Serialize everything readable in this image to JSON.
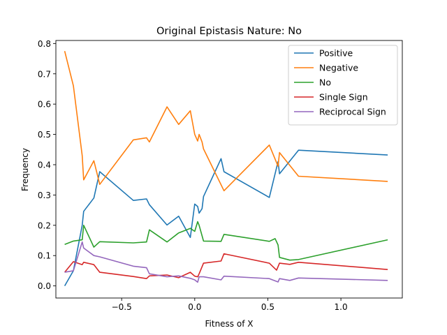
{
  "chart_data": {
    "type": "line",
    "title": "Original Epistasis Nature: No",
    "xlabel": "Fitness of X",
    "ylabel": "Frequency",
    "xlim": [
      -0.95,
      1.42
    ],
    "ylim": [
      -0.04,
      0.81
    ],
    "xticks": [
      -0.5,
      0.0,
      0.5,
      1.0
    ],
    "xtick_labels": [
      "−0.5",
      "0.0",
      "0.5",
      "1.0"
    ],
    "yticks": [
      0.0,
      0.1,
      0.2,
      0.3,
      0.4,
      0.5,
      0.6,
      0.7,
      0.8
    ],
    "ytick_labels": [
      "0.0",
      "0.1",
      "0.2",
      "0.3",
      "0.4",
      "0.5",
      "0.6",
      "0.7",
      "0.8"
    ],
    "grid": false,
    "legend": "top-right",
    "series": [
      {
        "name": "Positive",
        "color": "#1f77b4",
        "points": [
          [
            -0.89,
            0.0
          ],
          [
            -0.83,
            0.05
          ],
          [
            -0.77,
            0.2
          ],
          [
            -0.76,
            0.246
          ],
          [
            -0.69,
            0.29
          ],
          [
            -0.65,
            0.377
          ],
          [
            -0.42,
            0.282
          ],
          [
            -0.33,
            0.287
          ],
          [
            -0.31,
            0.268
          ],
          [
            -0.19,
            0.201
          ],
          [
            -0.11,
            0.23
          ],
          [
            -0.03,
            0.16
          ],
          [
            0.0,
            0.27
          ],
          [
            0.02,
            0.262
          ],
          [
            0.03,
            0.24
          ],
          [
            0.05,
            0.255
          ],
          [
            0.06,
            0.295
          ],
          [
            0.18,
            0.42
          ],
          [
            0.2,
            0.377
          ],
          [
            0.51,
            0.292
          ],
          [
            0.57,
            0.41
          ],
          [
            0.58,
            0.37
          ],
          [
            0.71,
            0.448
          ],
          [
            1.32,
            0.432
          ]
        ]
      },
      {
        "name": "Negative",
        "color": "#ff7f0e",
        "points": [
          [
            -0.89,
            0.775
          ],
          [
            -0.83,
            0.66
          ],
          [
            -0.77,
            0.43
          ],
          [
            -0.76,
            0.35
          ],
          [
            -0.69,
            0.413
          ],
          [
            -0.65,
            0.335
          ],
          [
            -0.42,
            0.482
          ],
          [
            -0.33,
            0.489
          ],
          [
            -0.31,
            0.475
          ],
          [
            -0.19,
            0.591
          ],
          [
            -0.11,
            0.533
          ],
          [
            -0.03,
            0.578
          ],
          [
            0.0,
            0.5
          ],
          [
            0.02,
            0.478
          ],
          [
            0.03,
            0.5
          ],
          [
            0.05,
            0.475
          ],
          [
            0.06,
            0.452
          ],
          [
            0.2,
            0.314
          ],
          [
            0.51,
            0.465
          ],
          [
            0.57,
            0.395
          ],
          [
            0.58,
            0.44
          ],
          [
            0.71,
            0.362
          ],
          [
            1.32,
            0.345
          ]
        ]
      },
      {
        "name": "No",
        "color": "#2ca02c",
        "points": [
          [
            -0.89,
            0.137
          ],
          [
            -0.83,
            0.148
          ],
          [
            -0.77,
            0.152
          ],
          [
            -0.76,
            0.2
          ],
          [
            -0.69,
            0.128
          ],
          [
            -0.65,
            0.146
          ],
          [
            -0.42,
            0.142
          ],
          [
            -0.33,
            0.145
          ],
          [
            -0.31,
            0.185
          ],
          [
            -0.19,
            0.145
          ],
          [
            -0.11,
            0.175
          ],
          [
            -0.03,
            0.19
          ],
          [
            0.0,
            0.18
          ],
          [
            0.02,
            0.212
          ],
          [
            0.03,
            0.2
          ],
          [
            0.06,
            0.148
          ],
          [
            0.18,
            0.147
          ],
          [
            0.2,
            0.17
          ],
          [
            0.51,
            0.147
          ],
          [
            0.55,
            0.156
          ],
          [
            0.57,
            0.135
          ],
          [
            0.58,
            0.094
          ],
          [
            0.65,
            0.085
          ],
          [
            0.71,
            0.087
          ],
          [
            1.32,
            0.152
          ]
        ]
      },
      {
        "name": "Single Sign",
        "color": "#d62728",
        "points": [
          [
            -0.89,
            0.045
          ],
          [
            -0.83,
            0.08
          ],
          [
            -0.77,
            0.07
          ],
          [
            -0.76,
            0.078
          ],
          [
            -0.69,
            0.07
          ],
          [
            -0.65,
            0.045
          ],
          [
            -0.42,
            0.031
          ],
          [
            -0.33,
            0.024
          ],
          [
            -0.31,
            0.033
          ],
          [
            -0.19,
            0.036
          ],
          [
            -0.11,
            0.027
          ],
          [
            -0.03,
            0.045
          ],
          [
            0.0,
            0.032
          ],
          [
            0.02,
            0.03
          ],
          [
            0.03,
            0.04
          ],
          [
            0.06,
            0.075
          ],
          [
            0.18,
            0.082
          ],
          [
            0.2,
            0.106
          ],
          [
            0.51,
            0.075
          ],
          [
            0.56,
            0.052
          ],
          [
            0.58,
            0.075
          ],
          [
            0.65,
            0.071
          ],
          [
            0.71,
            0.078
          ],
          [
            1.32,
            0.054
          ]
        ]
      },
      {
        "name": "Reciprocal Sign",
        "color": "#9467bd",
        "points": [
          [
            -0.89,
            0.045
          ],
          [
            -0.83,
            0.05
          ],
          [
            -0.77,
            0.145
          ],
          [
            -0.76,
            0.125
          ],
          [
            -0.69,
            0.1
          ],
          [
            -0.65,
            0.096
          ],
          [
            -0.42,
            0.065
          ],
          [
            -0.33,
            0.06
          ],
          [
            -0.31,
            0.04
          ],
          [
            -0.19,
            0.03
          ],
          [
            -0.11,
            0.033
          ],
          [
            -0.03,
            0.025
          ],
          [
            0.0,
            0.02
          ],
          [
            0.02,
            0.012
          ],
          [
            0.03,
            0.03
          ],
          [
            0.06,
            0.03
          ],
          [
            0.18,
            0.02
          ],
          [
            0.2,
            0.032
          ],
          [
            0.51,
            0.024
          ],
          [
            0.57,
            0.013
          ],
          [
            0.58,
            0.024
          ],
          [
            0.65,
            0.018
          ],
          [
            0.71,
            0.026
          ],
          [
            1.32,
            0.018
          ]
        ]
      }
    ]
  }
}
